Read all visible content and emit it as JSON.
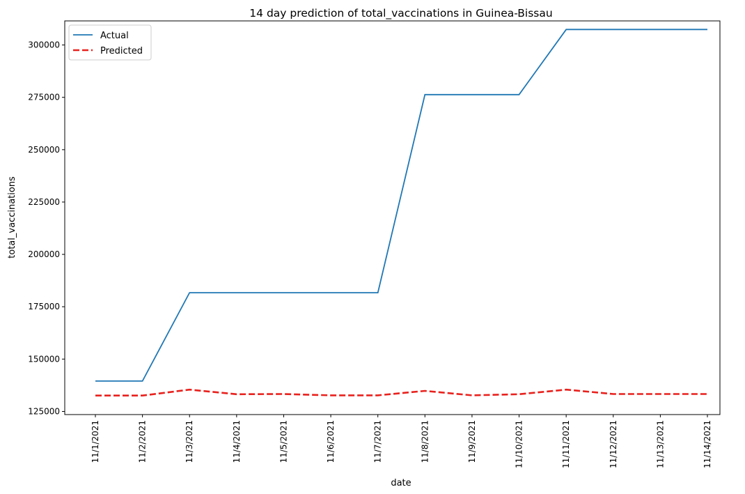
{
  "chart_data": {
    "type": "line",
    "title": "14 day prediction of total_vaccinations in Guinea-Bissau",
    "xlabel": "date",
    "ylabel": "total_vaccinations",
    "categories": [
      "11/1/2021",
      "11/2/2021",
      "11/3/2021",
      "11/4/2021",
      "11/5/2021",
      "11/6/2021",
      "11/7/2021",
      "11/8/2021",
      "11/9/2021",
      "11/10/2021",
      "11/11/2021",
      "11/12/2021",
      "11/13/2021",
      "11/14/2021"
    ],
    "ylim": [
      123500,
      311500
    ],
    "yticks": [
      125000,
      150000,
      175000,
      200000,
      225000,
      250000,
      275000,
      300000
    ],
    "grid": false,
    "legend_position": "top-left",
    "series": [
      {
        "name": "Actual",
        "color": "#1f77b4",
        "style": "solid",
        "values": [
          139500,
          139500,
          181700,
          181700,
          181700,
          181700,
          181700,
          276300,
          276300,
          276300,
          307400,
          307400,
          307400,
          307400
        ]
      },
      {
        "name": "Predicted",
        "color": "#e8211d",
        "style": "dashed",
        "values": [
          132600,
          132600,
          135400,
          133200,
          133300,
          132700,
          132700,
          134800,
          132700,
          133200,
          135400,
          133300,
          133300,
          133300
        ]
      }
    ]
  }
}
